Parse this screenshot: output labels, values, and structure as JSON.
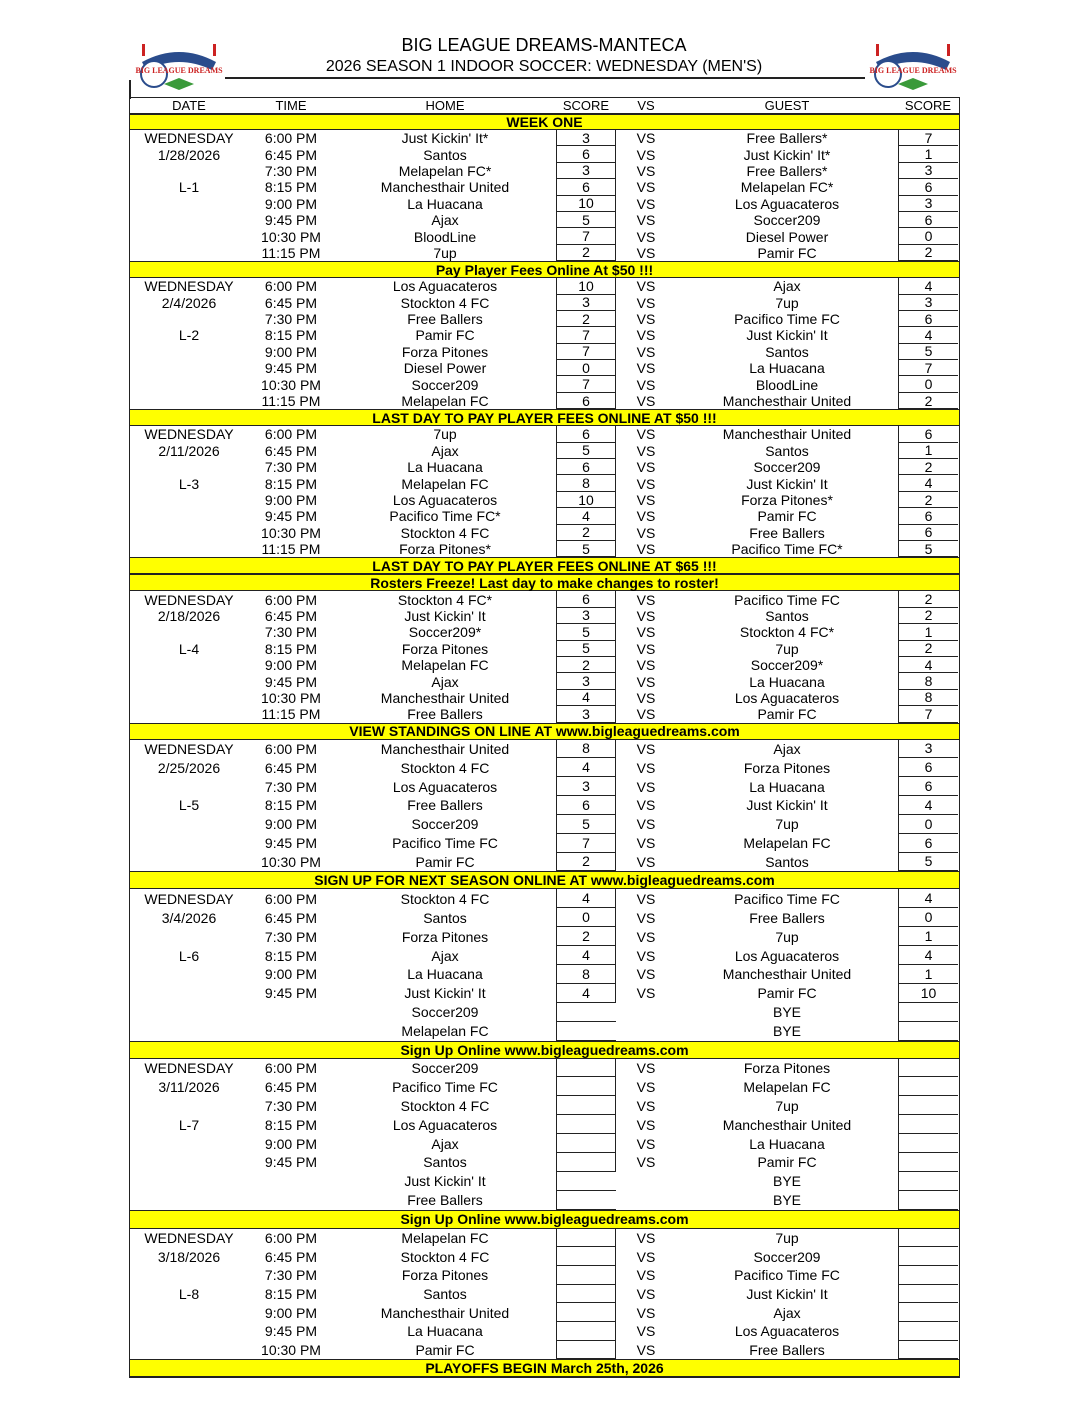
{
  "header": {
    "title": "BIG LEAGUE DREAMS-MANTECA",
    "subtitle": "2026 SEASON 1 INDOOR SOCCER: WEDNESDAY (MEN'S)",
    "logo_text": "BIG LEAGUE DREAMS"
  },
  "columns": [
    "DATE",
    "TIME",
    "HOME",
    "SCORE",
    "VS",
    "GUEST",
    "SCORE"
  ],
  "colors": {
    "banner": "#ffff00",
    "lines": "#222222"
  },
  "blocks": [
    {
      "type": "banner",
      "text": "WEEK ONE"
    },
    {
      "type": "week",
      "day": "WEDNESDAY",
      "date": "1/28/2026",
      "label": "L-1",
      "games": [
        [
          "6:00 PM",
          "Just Kickin' It*",
          "3",
          "VS",
          "Free Ballers*",
          "7"
        ],
        [
          "6:45 PM",
          "Santos",
          "6",
          "VS",
          "Just Kickin' It*",
          "1"
        ],
        [
          "7:30 PM",
          "Melapelan FC*",
          "3",
          "VS",
          "Free Ballers*",
          "3"
        ],
        [
          "8:15 PM",
          "Manchesthair United",
          "6",
          "VS",
          "Melapelan FC*",
          "6"
        ],
        [
          "9:00 PM",
          "La Huacana",
          "10",
          "VS",
          "Los Aguacateros",
          "3"
        ],
        [
          "9:45 PM",
          "Ajax",
          "5",
          "VS",
          "Soccer209",
          "6"
        ],
        [
          "10:30 PM",
          "BloodLine",
          "7",
          "VS",
          "Diesel Power",
          "0"
        ],
        [
          "11:15 PM",
          "7up",
          "2",
          "VS",
          "Pamir FC",
          "2"
        ]
      ]
    },
    {
      "type": "banner",
      "text": "Pay Player Fees Online At $50 !!!"
    },
    {
      "type": "week",
      "day": "WEDNESDAY",
      "date": "2/4/2026",
      "label": "L-2",
      "games": [
        [
          "6:00 PM",
          "Los Aguacateros",
          "10",
          "VS",
          "Ajax",
          "4"
        ],
        [
          "6:45 PM",
          "Stockton 4 FC",
          "3",
          "VS",
          "7up",
          "3"
        ],
        [
          "7:30 PM",
          "Free Ballers",
          "2",
          "VS",
          "Pacifico Time FC",
          "6"
        ],
        [
          "8:15 PM",
          "Pamir FC",
          "7",
          "VS",
          "Just Kickin' It",
          "4"
        ],
        [
          "9:00 PM",
          "Forza Pitones",
          "7",
          "VS",
          "Santos",
          "5"
        ],
        [
          "9:45 PM",
          "Diesel Power",
          "0",
          "VS",
          "La Huacana",
          "7"
        ],
        [
          "10:30 PM",
          "Soccer209",
          "7",
          "VS",
          "BloodLine",
          "0"
        ],
        [
          "11:15 PM",
          "Melapelan FC",
          "6",
          "VS",
          "Manchesthair United",
          "2"
        ]
      ]
    },
    {
      "type": "banner",
      "text": "LAST DAY TO PAY PLAYER FEES ONLINE AT $50 !!!"
    },
    {
      "type": "week",
      "day": "WEDNESDAY",
      "date": "2/11/2026",
      "label": "L-3",
      "games": [
        [
          "6:00 PM",
          "7up",
          "6",
          "VS",
          "Manchesthair United",
          "6"
        ],
        [
          "6:45 PM",
          "Ajax",
          "5",
          "VS",
          "Santos",
          "1"
        ],
        [
          "7:30 PM",
          "La Huacana",
          "6",
          "VS",
          "Soccer209",
          "2"
        ],
        [
          "8:15 PM",
          "Melapelan FC",
          "8",
          "VS",
          "Just Kickin' It",
          "4"
        ],
        [
          "9:00 PM",
          "Los Aguacateros",
          "10",
          "VS",
          "Forza Pitones*",
          "2"
        ],
        [
          "9:45 PM",
          "Pacifico Time FC*",
          "4",
          "VS",
          "Pamir FC",
          "6"
        ],
        [
          "10:30 PM",
          "Stockton 4 FC",
          "2",
          "VS",
          "Free Ballers",
          "6"
        ],
        [
          "11:15 PM",
          "Forza Pitones*",
          "5",
          "VS",
          "Pacifico Time FC*",
          "5"
        ]
      ]
    },
    {
      "type": "banner",
      "text": "LAST DAY TO PAY PLAYER FEES ONLINE AT $65 !!!"
    },
    {
      "type": "banner",
      "text": "Rosters Freeze! Last day to make changes to roster!"
    },
    {
      "type": "week",
      "day": "WEDNESDAY",
      "date": "2/18/2026",
      "label": "L-4",
      "games": [
        [
          "6:00 PM",
          "Stockton 4 FC*",
          "6",
          "VS",
          "Pacifico Time FC",
          "2"
        ],
        [
          "6:45 PM",
          "Just Kickin' It",
          "3",
          "VS",
          "Santos",
          "2"
        ],
        [
          "7:30 PM",
          "Soccer209*",
          "5",
          "VS",
          "Stockton 4 FC*",
          "1"
        ],
        [
          "8:15 PM",
          "Forza Pitones",
          "5",
          "VS",
          "7up",
          "2"
        ],
        [
          "9:00 PM",
          "Melapelan FC",
          "2",
          "VS",
          "Soccer209*",
          "4"
        ],
        [
          "9:45 PM",
          "Ajax",
          "3",
          "VS",
          "La Huacana",
          "8"
        ],
        [
          "10:30 PM",
          "Manchesthair United",
          "4",
          "VS",
          "Los Aguacateros",
          "8"
        ],
        [
          "11:15 PM",
          "Free Ballers",
          "3",
          "VS",
          "Pamir FC",
          "7"
        ]
      ]
    },
    {
      "type": "banner",
      "text": "VIEW STANDINGS ON LINE AT www.bigleaguedreams.com"
    },
    {
      "type": "week",
      "day": "WEDNESDAY",
      "date": "2/25/2026",
      "label": "L-5",
      "games": [
        [
          "6:00 PM",
          "Manchesthair United",
          "8",
          "VS",
          "Ajax",
          "3"
        ],
        [
          "6:45 PM",
          "Stockton 4 FC",
          "4",
          "VS",
          "Forza Pitones",
          "6"
        ],
        [
          "7:30 PM",
          "Los Aguacateros",
          "3",
          "VS",
          "La Huacana",
          "6"
        ],
        [
          "8:15 PM",
          "Free Ballers",
          "6",
          "VS",
          "Just Kickin' It",
          "4"
        ],
        [
          "9:00 PM",
          "Soccer209",
          "5",
          "VS",
          "7up",
          "0"
        ],
        [
          "9:45 PM",
          "Pacifico Time FC",
          "7",
          "VS",
          "Melapelan FC",
          "6"
        ],
        [
          "10:30 PM",
          "Pamir FC",
          "2",
          "VS",
          "Santos",
          "5"
        ]
      ]
    },
    {
      "type": "banner",
      "text": "SIGN UP FOR NEXT SEASON ONLINE AT www.bigleaguedreams.com"
    },
    {
      "type": "week",
      "day": "WEDNESDAY",
      "date": "3/4/2026",
      "label": "L-6",
      "games": [
        [
          "6:00 PM",
          "Stockton 4 FC",
          "4",
          "VS",
          "Pacifico Time FC",
          "4"
        ],
        [
          "6:45 PM",
          "Santos",
          "0",
          "VS",
          "Free Ballers",
          "0"
        ],
        [
          "7:30 PM",
          "Forza Pitones",
          "2",
          "VS",
          "7up",
          "1"
        ],
        [
          "8:15 PM",
          "Ajax",
          "4",
          "VS",
          "Los Aguacateros",
          "4"
        ],
        [
          "9:00 PM",
          "La Huacana",
          "8",
          "VS",
          "Manchesthair United",
          "1"
        ],
        [
          "9:45 PM",
          "Just Kickin' It",
          "4",
          "VS",
          "Pamir FC",
          "10"
        ],
        [
          "",
          "Soccer209",
          "",
          "",
          "BYE",
          ""
        ],
        [
          "",
          "Melapelan FC",
          "",
          "",
          "BYE",
          ""
        ]
      ]
    },
    {
      "type": "banner",
      "text": "Sign Up Online www.bigleaguedreams.com"
    },
    {
      "type": "week",
      "day": "WEDNESDAY",
      "date": "3/11/2026",
      "label": "L-7",
      "games": [
        [
          "6:00 PM",
          "Soccer209",
          "",
          "VS",
          "Forza Pitones",
          ""
        ],
        [
          "6:45 PM",
          "Pacifico Time FC",
          "",
          "VS",
          "Melapelan FC",
          ""
        ],
        [
          "7:30 PM",
          "Stockton 4 FC",
          "",
          "VS",
          "7up",
          ""
        ],
        [
          "8:15 PM",
          "Los Aguacateros",
          "",
          "VS",
          "Manchesthair United",
          ""
        ],
        [
          "9:00 PM",
          "Ajax",
          "",
          "VS",
          "La Huacana",
          ""
        ],
        [
          "9:45 PM",
          "Santos",
          "",
          "VS",
          "Pamir FC",
          ""
        ],
        [
          "",
          "Just Kickin' It",
          "",
          "",
          "BYE",
          ""
        ],
        [
          "",
          "Free Ballers",
          "",
          "",
          "BYE",
          ""
        ]
      ]
    },
    {
      "type": "banner",
      "text": "Sign Up Online www.bigleaguedreams.com"
    },
    {
      "type": "week",
      "day": "WEDNESDAY",
      "date": "3/18/2026",
      "label": "L-8",
      "games": [
        [
          "6:00 PM",
          "Melapelan FC",
          "",
          "VS",
          "7up",
          ""
        ],
        [
          "6:45 PM",
          "Stockton 4 FC",
          "",
          "VS",
          "Soccer209",
          ""
        ],
        [
          "7:30 PM",
          "Forza Pitones",
          "",
          "VS",
          "Pacifico Time FC",
          ""
        ],
        [
          "8:15 PM",
          "Santos",
          "",
          "VS",
          "Just Kickin' It",
          ""
        ],
        [
          "9:00 PM",
          "Manchesthair United",
          "",
          "VS",
          "Ajax",
          ""
        ],
        [
          "9:45 PM",
          "La Huacana",
          "",
          "VS",
          "Los Aguacateros",
          ""
        ],
        [
          "10:30 PM",
          "Pamir FC",
          "",
          "VS",
          "Free Ballers",
          ""
        ]
      ]
    },
    {
      "type": "banner",
      "text": "PLAYOFFS BEGIN March 25th, 2026"
    }
  ]
}
